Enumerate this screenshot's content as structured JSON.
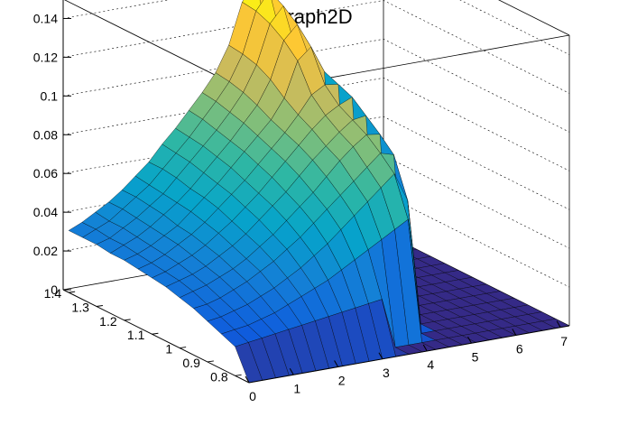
{
  "chart_data": {
    "type": "surface3d",
    "title": "Graph2D",
    "xlabel": "",
    "ylabel": "",
    "zlabel": "",
    "xlim": [
      0,
      7.2
    ],
    "ylim": [
      0.75,
      1.42
    ],
    "zlim": [
      0,
      0.15
    ],
    "x_ticks": [
      "0",
      "1",
      "2",
      "3",
      "4",
      "5",
      "6",
      "7"
    ],
    "y_ticks": [
      "0.8",
      "0.9",
      "1",
      "1.1",
      "1.2",
      "1.3",
      "1.4"
    ],
    "z_ticks": [
      "0",
      "0.02",
      "0.04",
      "0.06",
      "0.08",
      "0.1",
      "0.12",
      "0.14"
    ],
    "x_tick_values": [
      0,
      1,
      2,
      3,
      4,
      5,
      6,
      7
    ],
    "y_tick_values": [
      0.8,
      0.9,
      1.0,
      1.1,
      1.2,
      1.3,
      1.4
    ],
    "z_tick_values": [
      0,
      0.02,
      0.04,
      0.06,
      0.08,
      0.1,
      0.12,
      0.14
    ],
    "x_grid": [
      0,
      0.3,
      0.6,
      0.9,
      1.2,
      1.5,
      1.8,
      2.1,
      2.4,
      2.7,
      3.0,
      3.3,
      3.6,
      3.9,
      4.2,
      4.5,
      4.8,
      5.1,
      5.4,
      5.7,
      6.0,
      6.3,
      6.6,
      6.9,
      7.2
    ],
    "y_grid": [
      0.75,
      0.8,
      0.85,
      0.9,
      0.95,
      1.0,
      1.05,
      1.1,
      1.15,
      1.2,
      1.25,
      1.3,
      1.35,
      1.4
    ],
    "z_values": [
      [
        0,
        0,
        0,
        0,
        0,
        0,
        0,
        0,
        0,
        0,
        0,
        0,
        0,
        0,
        0,
        0,
        0,
        0,
        0,
        0,
        0,
        0,
        0,
        0,
        0
      ],
      [
        0.015,
        0.016,
        0.017,
        0.018,
        0.019,
        0.02,
        0.021,
        0.022,
        0.023,
        0.024,
        0.025,
        0.026,
        0,
        0,
        0,
        0,
        0,
        0,
        0,
        0,
        0,
        0,
        0,
        0,
        0
      ],
      [
        0.018,
        0.019,
        0.02,
        0.022,
        0.024,
        0.027,
        0.03,
        0.033,
        0.036,
        0.04,
        0.044,
        0.048,
        0.052,
        0.056,
        0.06,
        0,
        0,
        0,
        0,
        0,
        0,
        0,
        0,
        0,
        0
      ],
      [
        0.021,
        0.022,
        0.024,
        0.026,
        0.029,
        0.032,
        0.036,
        0.04,
        0.045,
        0.05,
        0.056,
        0.062,
        0.068,
        0.074,
        0.08,
        0.065,
        0,
        0,
        0,
        0,
        0,
        0,
        0,
        0,
        0
      ],
      [
        0.024,
        0.025,
        0.027,
        0.03,
        0.033,
        0.037,
        0.041,
        0.046,
        0.051,
        0.057,
        0.063,
        0.069,
        0.075,
        0.081,
        0.087,
        0.085,
        0,
        0,
        0,
        0,
        0,
        0,
        0,
        0,
        0
      ],
      [
        0.026,
        0.028,
        0.03,
        0.033,
        0.036,
        0.04,
        0.045,
        0.05,
        0.056,
        0.062,
        0.068,
        0.075,
        0.082,
        0.088,
        0.093,
        0.092,
        0,
        0,
        0,
        0,
        0,
        0,
        0,
        0,
        0
      ],
      [
        0.028,
        0.03,
        0.032,
        0.035,
        0.039,
        0.043,
        0.048,
        0.054,
        0.06,
        0.066,
        0.073,
        0.08,
        0.086,
        0.092,
        0.097,
        0.098,
        0,
        0,
        0,
        0,
        0,
        0,
        0,
        0,
        0
      ],
      [
        0.029,
        0.031,
        0.034,
        0.037,
        0.041,
        0.046,
        0.051,
        0.057,
        0.063,
        0.07,
        0.077,
        0.084,
        0.091,
        0.097,
        0.101,
        0.104,
        0,
        0,
        0,
        0,
        0,
        0,
        0,
        0,
        0
      ],
      [
        0.03,
        0.032,
        0.035,
        0.039,
        0.043,
        0.048,
        0.054,
        0.06,
        0.066,
        0.073,
        0.08,
        0.087,
        0.095,
        0.104,
        0.108,
        0.107,
        0,
        0,
        0,
        0,
        0,
        0,
        0,
        0,
        0
      ],
      [
        0.031,
        0.033,
        0.036,
        0.04,
        0.044,
        0.05,
        0.056,
        0.062,
        0.069,
        0.076,
        0.083,
        0.09,
        0.1,
        0.118,
        0.124,
        0.11,
        0,
        0,
        0,
        0,
        0,
        0,
        0,
        0,
        0
      ],
      [
        0.031,
        0.034,
        0.037,
        0.041,
        0.046,
        0.051,
        0.057,
        0.064,
        0.071,
        0.078,
        0.086,
        0.094,
        0.106,
        0.125,
        0.132,
        0.112,
        0,
        0,
        0,
        0,
        0,
        0,
        0,
        0,
        0
      ],
      [
        0.032,
        0.034,
        0.038,
        0.042,
        0.047,
        0.052,
        0.059,
        0.066,
        0.073,
        0.08,
        0.088,
        0.097,
        0.11,
        0.13,
        0.138,
        0.113,
        0,
        0,
        0,
        0,
        0,
        0,
        0,
        0,
        0
      ],
      [
        0.032,
        0.035,
        0.038,
        0.043,
        0.048,
        0.053,
        0.06,
        0.067,
        0.074,
        0.082,
        0.09,
        0.099,
        0.112,
        0.133,
        0.142,
        0.113,
        0,
        0,
        0,
        0,
        0,
        0,
        0,
        0,
        0
      ],
      [
        0.032,
        0.035,
        0.039,
        0.043,
        0.048,
        0.054,
        0.06,
        0.068,
        0.075,
        0.083,
        0.091,
        0.1,
        0.113,
        0.134,
        0.143,
        0.114,
        0,
        0,
        0,
        0,
        0,
        0,
        0,
        0,
        0
      ]
    ],
    "colormap": [
      "#352a87",
      "#0f5cdd",
      "#1481d6",
      "#06a4ca",
      "#2eb7a4",
      "#87bf77",
      "#d1bb59",
      "#fec832",
      "#f9fb0e"
    ],
    "grid": true,
    "legend": "none"
  }
}
